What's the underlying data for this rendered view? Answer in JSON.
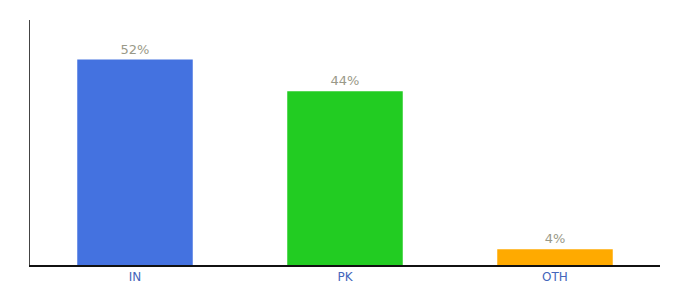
{
  "chart_data": {
    "type": "bar",
    "categories": [
      "IN",
      "PK",
      "OTH"
    ],
    "values": [
      52,
      44,
      4
    ],
    "value_labels": [
      "52%",
      "44%",
      "4%"
    ],
    "colors": [
      "#4472e0",
      "#22cc22",
      "#ffaa00"
    ],
    "ylim": [
      0,
      62
    ],
    "yticks": [],
    "data_labels": true,
    "tick_labels": "x",
    "grid": false
  }
}
